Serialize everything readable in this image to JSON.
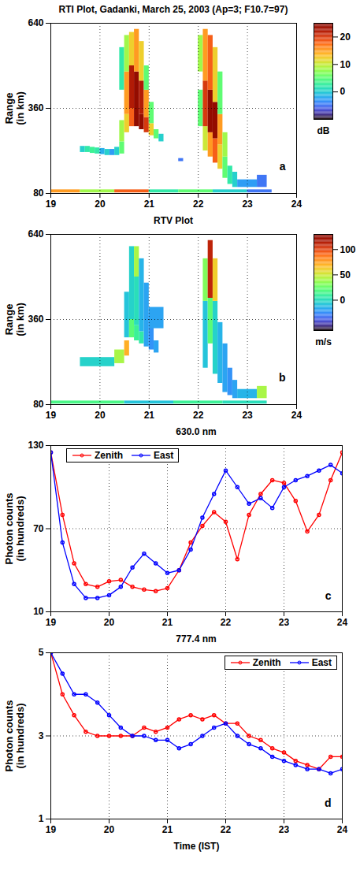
{
  "chart_data": [
    {
      "type": "heatmap",
      "title": "RTI Plot, Gadanki, March 25, 2003 (Ap=3; F10.7=97)",
      "panel_label": "a",
      "ylabel": "Range\n(in km)",
      "xlim": [
        19,
        24
      ],
      "xticks": [
        19,
        20,
        21,
        22,
        23,
        24
      ],
      "ylim": [
        80,
        640
      ],
      "yticks": [
        80,
        360,
        640
      ],
      "grid": true,
      "colorbar": {
        "label": "dB",
        "range": [
          -10,
          25
        ],
        "ticks": [
          0,
          10,
          20
        ]
      },
      "cells": [
        [
          19.6,
          19.7,
          215,
          235,
          0
        ],
        [
          19.7,
          19.8,
          215,
          235,
          2
        ],
        [
          19.8,
          19.9,
          212,
          232,
          3
        ],
        [
          19.9,
          20.0,
          210,
          230,
          2
        ],
        [
          20.0,
          20.1,
          208,
          228,
          -2
        ],
        [
          20.1,
          20.2,
          205,
          225,
          0
        ],
        [
          20.2,
          20.3,
          205,
          225,
          -3
        ],
        [
          20.3,
          20.4,
          205,
          232,
          0
        ],
        [
          20.4,
          20.5,
          210,
          250,
          5
        ],
        [
          20.4,
          20.5,
          250,
          320,
          8
        ],
        [
          20.4,
          20.5,
          420,
          560,
          2
        ],
        [
          20.5,
          20.6,
          280,
          340,
          12
        ],
        [
          20.5,
          20.6,
          340,
          480,
          15
        ],
        [
          20.5,
          20.6,
          480,
          600,
          8
        ],
        [
          20.6,
          20.7,
          300,
          360,
          18
        ],
        [
          20.6,
          20.7,
          360,
          500,
          22
        ],
        [
          20.6,
          20.7,
          500,
          610,
          12
        ],
        [
          20.7,
          20.8,
          300,
          360,
          25
        ],
        [
          20.7,
          20.8,
          360,
          480,
          24
        ],
        [
          20.7,
          20.8,
          480,
          620,
          15
        ],
        [
          20.8,
          20.9,
          290,
          340,
          24
        ],
        [
          20.8,
          20.9,
          340,
          450,
          22
        ],
        [
          20.8,
          20.9,
          450,
          580,
          12
        ],
        [
          20.9,
          21.0,
          280,
          330,
          20
        ],
        [
          20.9,
          21.0,
          330,
          420,
          15
        ],
        [
          20.9,
          21.0,
          420,
          500,
          5
        ],
        [
          21.0,
          21.1,
          270,
          310,
          12
        ],
        [
          21.0,
          21.1,
          310,
          380,
          5
        ],
        [
          21.1,
          21.2,
          260,
          290,
          5
        ],
        [
          21.2,
          21.3,
          250,
          275,
          0
        ],
        [
          21.6,
          21.7,
          185,
          195,
          -5
        ],
        [
          22.0,
          22.1,
          300,
          420,
          5
        ],
        [
          22.0,
          22.1,
          480,
          600,
          8
        ],
        [
          22.1,
          22.2,
          220,
          300,
          10
        ],
        [
          22.1,
          22.2,
          300,
          450,
          20
        ],
        [
          22.1,
          22.2,
          450,
          620,
          15
        ],
        [
          22.2,
          22.3,
          200,
          280,
          15
        ],
        [
          22.2,
          22.3,
          280,
          420,
          24
        ],
        [
          22.2,
          22.3,
          420,
          600,
          18
        ],
        [
          22.3,
          22.4,
          180,
          260,
          18
        ],
        [
          22.3,
          22.4,
          260,
          380,
          24
        ],
        [
          22.3,
          22.4,
          380,
          560,
          12
        ],
        [
          22.4,
          22.5,
          160,
          240,
          12
        ],
        [
          22.4,
          22.5,
          240,
          340,
          15
        ],
        [
          22.4,
          22.5,
          340,
          480,
          5
        ],
        [
          22.5,
          22.6,
          130,
          200,
          5
        ],
        [
          22.5,
          22.6,
          200,
          280,
          8
        ],
        [
          22.6,
          22.7,
          110,
          170,
          2
        ],
        [
          22.7,
          22.8,
          100,
          150,
          0
        ],
        [
          22.8,
          23.2,
          100,
          125,
          -3
        ],
        [
          23.2,
          23.4,
          100,
          140,
          -5
        ],
        [
          19.0,
          19.6,
          82,
          92,
          15
        ],
        [
          19.6,
          20.3,
          82,
          92,
          8
        ],
        [
          20.3,
          21.0,
          82,
          92,
          18
        ],
        [
          21.0,
          21.6,
          82,
          92,
          2
        ],
        [
          21.6,
          22.3,
          82,
          92,
          5
        ],
        [
          22.3,
          23.0,
          82,
          92,
          0
        ],
        [
          23.0,
          23.5,
          82,
          92,
          -5
        ]
      ]
    },
    {
      "type": "heatmap",
      "title": "RTV Plot",
      "panel_label": "b",
      "ylabel": "Range\n(in km)",
      "xlim": [
        19,
        24
      ],
      "xticks": [
        19,
        20,
        21,
        22,
        23,
        24
      ],
      "ylim": [
        80,
        640
      ],
      "yticks": [
        80,
        360,
        640
      ],
      "grid": true,
      "colorbar": {
        "label": "m/s",
        "range": [
          -60,
          130
        ],
        "ticks": [
          0,
          50,
          100
        ]
      },
      "cells": [
        [
          19.6,
          20.3,
          205,
          235,
          -5
        ],
        [
          20.3,
          20.5,
          215,
          260,
          40
        ],
        [
          20.5,
          20.6,
          240,
          290,
          70
        ],
        [
          20.5,
          20.6,
          300,
          450,
          -10
        ],
        [
          20.6,
          20.7,
          300,
          360,
          20
        ],
        [
          20.6,
          20.7,
          360,
          600,
          -5
        ],
        [
          20.7,
          20.8,
          290,
          340,
          10
        ],
        [
          20.7,
          20.8,
          340,
          500,
          0
        ],
        [
          20.7,
          20.8,
          500,
          600,
          40
        ],
        [
          20.8,
          20.9,
          280,
          320,
          5
        ],
        [
          20.8,
          20.9,
          320,
          560,
          -15
        ],
        [
          20.9,
          21.0,
          270,
          480,
          -20
        ],
        [
          21.0,
          21.1,
          260,
          380,
          -25
        ],
        [
          21.1,
          21.2,
          250,
          290,
          -20
        ],
        [
          21.0,
          21.3,
          330,
          400,
          -20
        ],
        [
          22.1,
          22.2,
          200,
          420,
          -10
        ],
        [
          22.1,
          22.2,
          420,
          560,
          30
        ],
        [
          22.2,
          22.3,
          280,
          430,
          20
        ],
        [
          22.2,
          22.3,
          430,
          620,
          110
        ],
        [
          22.3,
          22.4,
          180,
          420,
          -5
        ],
        [
          22.3,
          22.4,
          420,
          560,
          60
        ],
        [
          22.4,
          22.5,
          150,
          350,
          -15
        ],
        [
          22.5,
          22.6,
          120,
          280,
          -20
        ],
        [
          22.6,
          22.7,
          110,
          200,
          -25
        ],
        [
          22.7,
          22.8,
          100,
          160,
          -20
        ],
        [
          22.8,
          23.2,
          100,
          130,
          -15
        ],
        [
          23.2,
          23.4,
          100,
          140,
          40
        ],
        [
          19.0,
          20.5,
          82,
          92,
          15
        ],
        [
          20.5,
          21.5,
          82,
          92,
          -10
        ],
        [
          21.5,
          22.5,
          82,
          92,
          10
        ],
        [
          22.5,
          23.4,
          82,
          92,
          0
        ]
      ]
    },
    {
      "type": "line",
      "title": "630.0 nm",
      "panel_label": "c",
      "ylabel": "Photon counts\n(in hundreds)",
      "xlim": [
        19,
        24
      ],
      "xticks": [
        19,
        20,
        21,
        22,
        23,
        24
      ],
      "ylim": [
        10,
        130
      ],
      "yticks": [
        10,
        70,
        130
      ],
      "grid": true,
      "legend": "upper left",
      "x": [
        19.0,
        19.2,
        19.4,
        19.6,
        19.8,
        20.0,
        20.2,
        20.4,
        20.6,
        20.8,
        21.0,
        21.2,
        21.4,
        21.6,
        21.8,
        22.0,
        22.2,
        22.4,
        22.6,
        22.8,
        23.0,
        23.2,
        23.4,
        23.6,
        23.8,
        24.0
      ],
      "series": [
        {
          "name": "Zenith",
          "color": "#ff0000",
          "marker": "circle",
          "line_style": "solid",
          "values": [
            125,
            80,
            45,
            30,
            28,
            32,
            33,
            28,
            26,
            25,
            27,
            40,
            60,
            72,
            82,
            75,
            48,
            80,
            95,
            105,
            103,
            90,
            68,
            80,
            105,
            125
          ]
        },
        {
          "name": "East",
          "color": "#0000ff",
          "marker": "circle",
          "line_style": "solid",
          "values": [
            125,
            60,
            30,
            20,
            20,
            22,
            28,
            42,
            52,
            45,
            38,
            40,
            55,
            78,
            95,
            112,
            100,
            88,
            92,
            85,
            100,
            105,
            108,
            112,
            116,
            110
          ]
        }
      ]
    },
    {
      "type": "line",
      "title": "777.4 nm",
      "panel_label": "d",
      "xlabel": "Time (IST)",
      "ylabel": "Photon counts\n(in hundreds)",
      "xlim": [
        19,
        24
      ],
      "xticks": [
        19,
        20,
        21,
        22,
        23,
        24
      ],
      "ylim": [
        1,
        5
      ],
      "yticks": [
        1,
        3,
        5
      ],
      "grid": true,
      "legend": "upper right",
      "x": [
        19.0,
        19.2,
        19.4,
        19.6,
        19.8,
        20.0,
        20.2,
        20.4,
        20.6,
        20.8,
        21.0,
        21.2,
        21.4,
        21.6,
        21.8,
        22.0,
        22.2,
        22.4,
        22.6,
        22.8,
        23.0,
        23.2,
        23.4,
        23.6,
        23.8,
        24.0
      ],
      "series": [
        {
          "name": "Zenith",
          "color": "#ff0000",
          "marker": "circle",
          "line_style": "solid",
          "values": [
            5,
            4.0,
            3.5,
            3.1,
            3.0,
            3.0,
            3.0,
            3.0,
            3.2,
            3.1,
            3.2,
            3.4,
            3.5,
            3.4,
            3.5,
            3.3,
            3.3,
            3.0,
            2.9,
            2.7,
            2.6,
            2.4,
            2.3,
            2.2,
            2.5,
            2.5
          ]
        },
        {
          "name": "East",
          "color": "#0000ff",
          "marker": "circle",
          "line_style": "solid",
          "values": [
            5,
            4.5,
            4.0,
            4.0,
            3.8,
            3.5,
            3.2,
            3.0,
            3.0,
            2.9,
            2.9,
            2.7,
            2.8,
            3.0,
            3.2,
            3.3,
            3.0,
            2.8,
            2.7,
            2.5,
            2.4,
            2.3,
            2.2,
            2.2,
            2.1,
            2.2
          ]
        }
      ]
    }
  ]
}
